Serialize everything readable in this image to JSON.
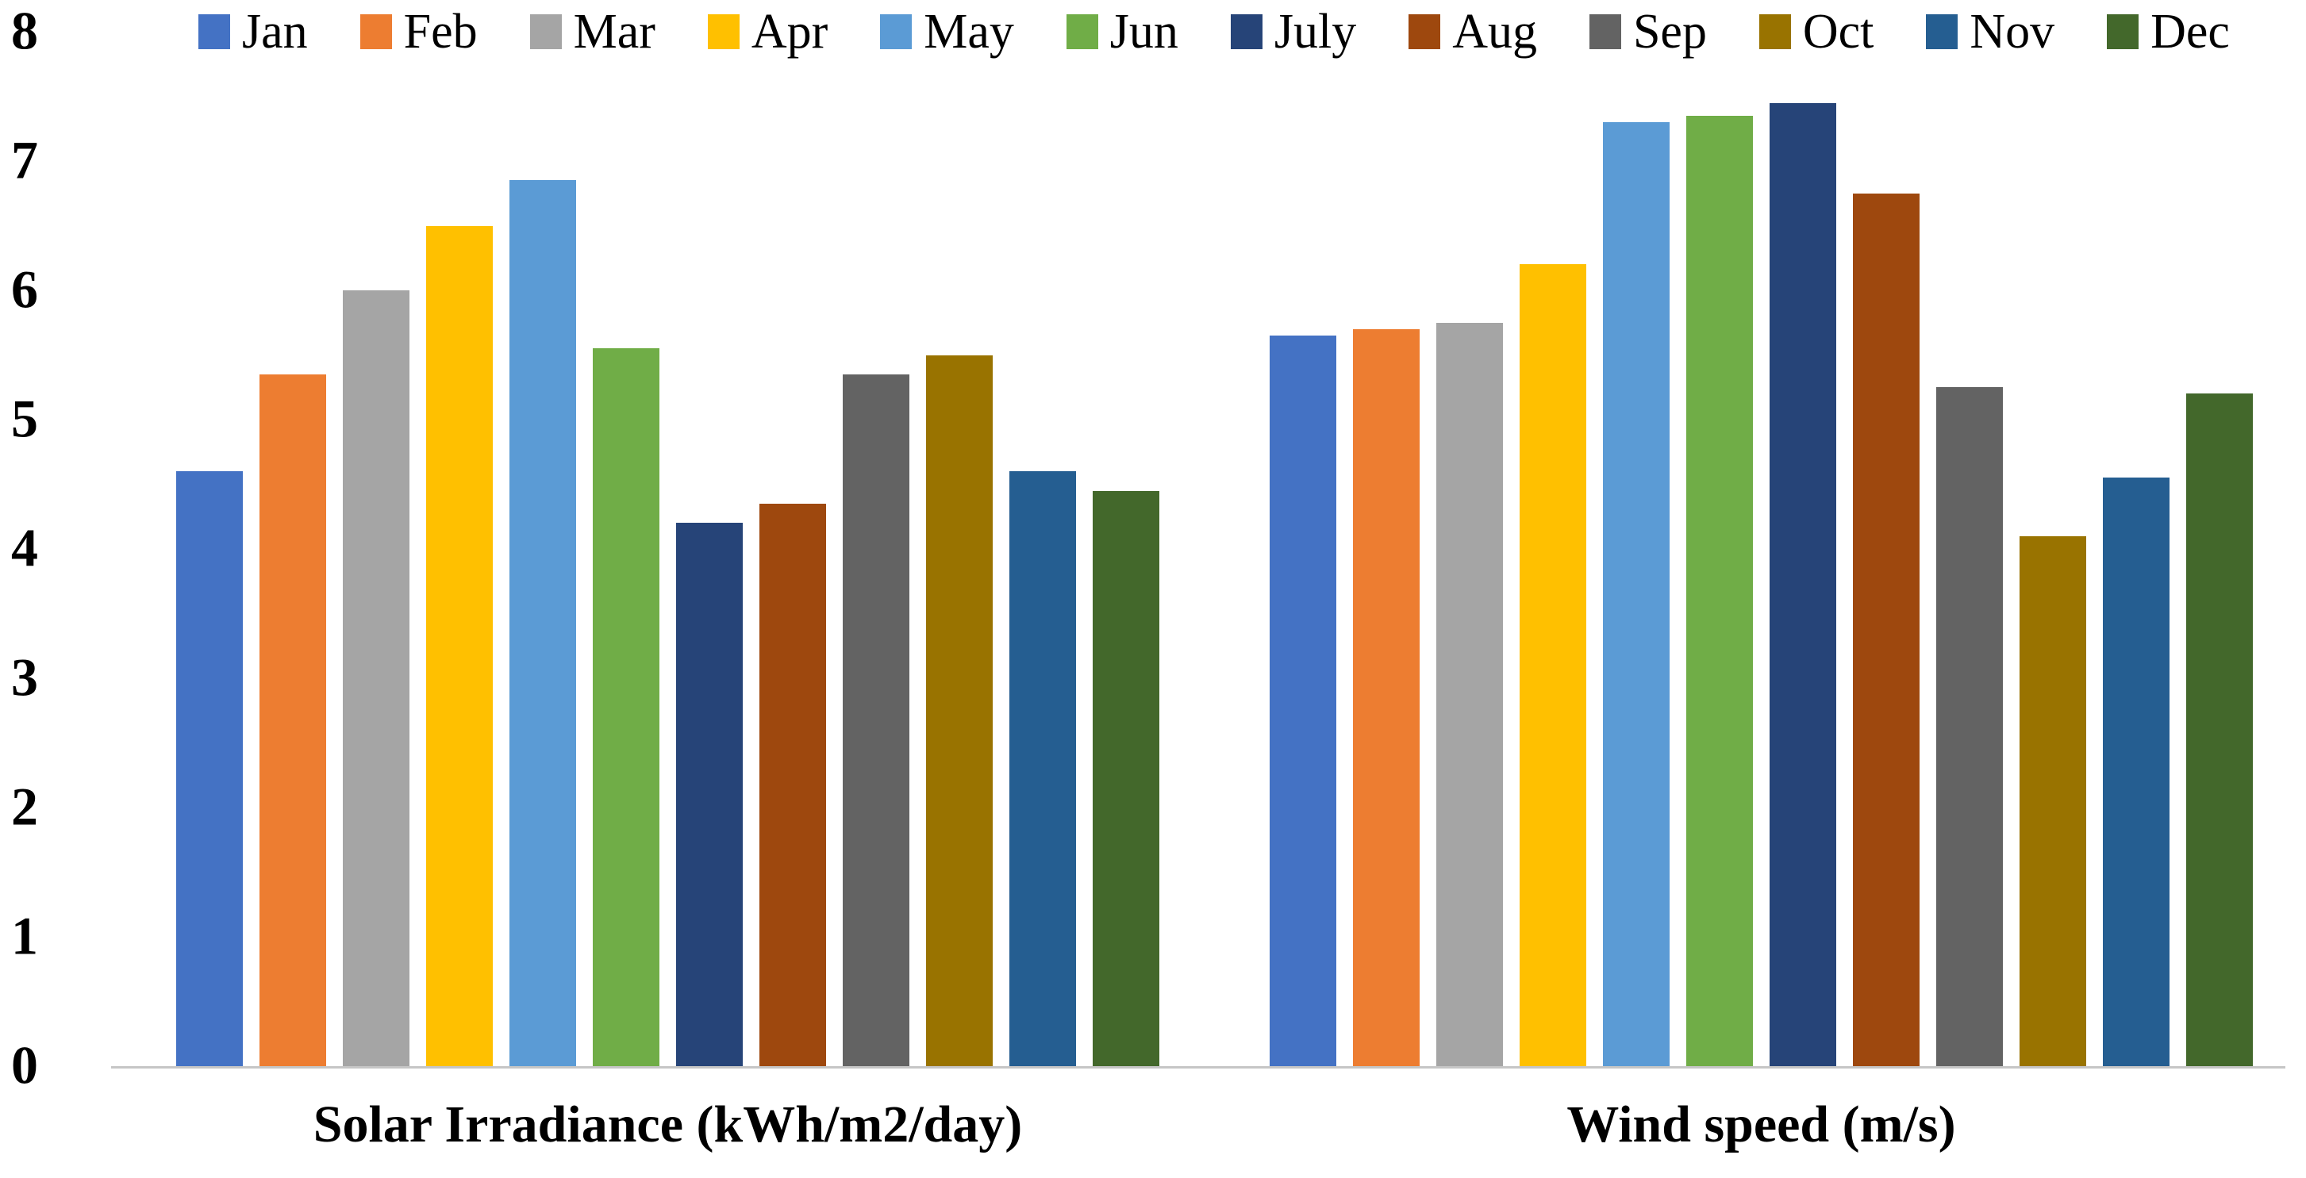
{
  "figure": {
    "background": "#FFFFFF",
    "axis_line_color": "#C6C6C6",
    "text_color": "#000000"
  },
  "chart_data": {
    "type": "bar",
    "title": "",
    "xlabel": "",
    "ylabel": "",
    "legend_position": "top",
    "grid": false,
    "ylim": [
      0,
      8
    ],
    "y_ticks": [
      8,
      7,
      6,
      5,
      4,
      3,
      2,
      1,
      0
    ],
    "categories": [
      "Solar Irradiance (kWh/m2/day)",
      "Wind speed (m/s)"
    ],
    "series": [
      {
        "name": "Jan",
        "color": "#4472C4",
        "values": [
          4.6,
          5.65
        ]
      },
      {
        "name": "Feb",
        "color": "#ED7D31",
        "values": [
          5.35,
          5.7
        ]
      },
      {
        "name": "Mar",
        "color": "#A5A5A5",
        "values": [
          6.0,
          5.75
        ]
      },
      {
        "name": "Apr",
        "color": "#FFC000",
        "values": [
          6.5,
          6.2
        ]
      },
      {
        "name": "May",
        "color": "#5B9BD5",
        "values": [
          6.85,
          7.3
        ]
      },
      {
        "name": "Jun",
        "color": "#70AD47",
        "values": [
          5.55,
          7.35
        ]
      },
      {
        "name": "July",
        "color": "#264478",
        "values": [
          4.2,
          7.45
        ]
      },
      {
        "name": "Aug",
        "color": "#9E480E",
        "values": [
          4.35,
          6.75
        ]
      },
      {
        "name": "Sep",
        "color": "#636363",
        "values": [
          5.35,
          5.25
        ]
      },
      {
        "name": "Oct",
        "color": "#997300",
        "values": [
          5.5,
          4.1
        ]
      },
      {
        "name": "Nov",
        "color": "#255E91",
        "values": [
          4.6,
          4.55
        ]
      },
      {
        "name": "Dec",
        "color": "#43682B",
        "values": [
          4.45,
          5.2
        ]
      }
    ]
  }
}
